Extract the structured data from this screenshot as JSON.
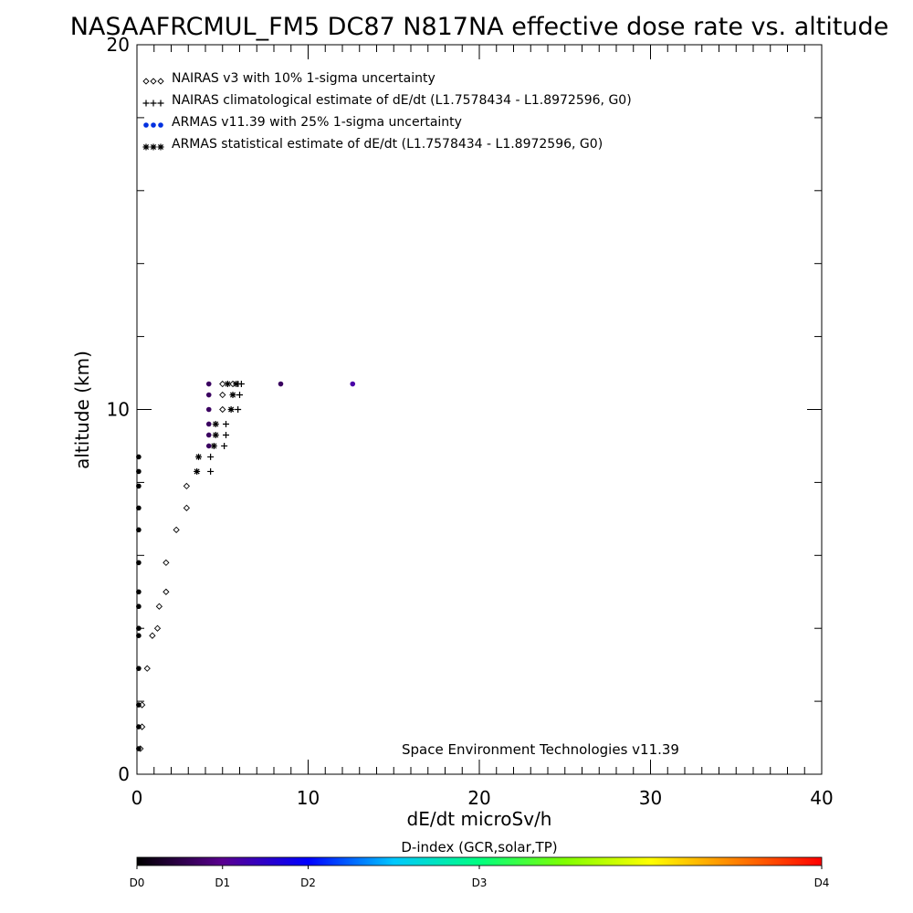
{
  "chart_data": {
    "type": "scatter",
    "title": "NASAAFRCMUL_FM5 DC87 N817NA effective dose rate vs. altitude",
    "xlabel": "dE/dt microSv/h",
    "ylabel": "altitude (km)",
    "xlim": [
      0,
      40
    ],
    "ylim": [
      0,
      20
    ],
    "x_tick_labels": [
      "0",
      "10",
      "20",
      "30",
      "40"
    ],
    "y_tick_labels": [
      "0",
      "10",
      "20"
    ],
    "x_minor_step": 1,
    "y_minor_step": 2,
    "grid": false,
    "legend_position": "top-left",
    "credit": "Space Environment Technologies v11.39",
    "series": [
      {
        "name": "NAIRAS v3 with 10% 1-sigma uncertainty",
        "marker": "diamond",
        "color": "#000000",
        "points": [
          [
            0.2,
            0.7
          ],
          [
            0.3,
            1.3
          ],
          [
            0.3,
            1.9
          ],
          [
            0.6,
            2.9
          ],
          [
            0.9,
            3.8
          ],
          [
            1.2,
            4.0
          ],
          [
            1.3,
            4.6
          ],
          [
            1.7,
            5.0
          ],
          [
            1.7,
            5.8
          ],
          [
            2.3,
            6.7
          ],
          [
            2.9,
            7.3
          ],
          [
            2.9,
            7.9
          ],
          [
            5.0,
            10.0
          ],
          [
            5.0,
            10.4
          ],
          [
            5.0,
            10.7
          ],
          [
            5.6,
            10.7
          ]
        ]
      },
      {
        "name": "NAIRAS climatological estimate of dE/dt (L1.7578434 - L1.8972596, G0)",
        "marker": "plus",
        "color": "#000000",
        "points": [
          [
            4.3,
            8.3
          ],
          [
            4.3,
            8.7
          ],
          [
            5.1,
            9.0
          ],
          [
            5.2,
            9.3
          ],
          [
            5.2,
            9.6
          ],
          [
            5.9,
            10.0
          ],
          [
            6.0,
            10.4
          ],
          [
            5.9,
            10.7
          ],
          [
            6.1,
            10.7
          ]
        ]
      },
      {
        "name": "ARMAS v11.39 with 25% 1-sigma uncertainty",
        "marker": "dot",
        "color": "#0030e0",
        "points": [
          [
            0.1,
            0.7
          ],
          [
            0.1,
            1.3
          ],
          [
            0.1,
            1.9
          ],
          [
            0.1,
            2.9
          ],
          [
            0.1,
            3.8
          ],
          [
            0.1,
            4.0
          ],
          [
            0.1,
            4.6
          ],
          [
            0.1,
            5.0
          ],
          [
            0.1,
            5.8
          ],
          [
            0.1,
            6.7
          ],
          [
            0.1,
            7.3
          ],
          [
            0.1,
            7.9
          ],
          [
            0.1,
            8.3
          ],
          [
            0.1,
            8.7
          ],
          [
            4.2,
            9.0
          ],
          [
            4.2,
            9.3
          ],
          [
            4.2,
            9.6
          ],
          [
            4.2,
            10.0
          ],
          [
            4.2,
            10.4
          ],
          [
            4.2,
            10.7
          ],
          [
            8.4,
            10.7
          ],
          [
            12.6,
            10.7
          ]
        ]
      },
      {
        "name": "ARMAS statistical estimate of dE/dt (L1.7578434 - L1.8972596, G0)",
        "marker": "asterisk",
        "color": "#000000",
        "points": [
          [
            3.5,
            8.3
          ],
          [
            3.6,
            8.7
          ],
          [
            4.5,
            9.0
          ],
          [
            4.6,
            9.3
          ],
          [
            4.6,
            9.6
          ],
          [
            5.5,
            10.0
          ],
          [
            5.6,
            10.4
          ],
          [
            5.3,
            10.7
          ],
          [
            5.8,
            10.7
          ]
        ]
      }
    ],
    "colorbar": {
      "label": "D-index (GCR,solar,TP)",
      "ticks": [
        {
          "label": "D0",
          "value": 0.0
        },
        {
          "label": "D1",
          "value": 0.125
        },
        {
          "label": "D2",
          "value": 0.25
        },
        {
          "label": "D3",
          "value": 0.5
        },
        {
          "label": "D4",
          "value": 1.0
        }
      ],
      "colors": [
        "#000000",
        "#5a0090",
        "#0000ff",
        "#00c8ff",
        "#00ff80",
        "#80ff00",
        "#ffff00",
        "#ff8000",
        "#ff0000"
      ]
    }
  }
}
